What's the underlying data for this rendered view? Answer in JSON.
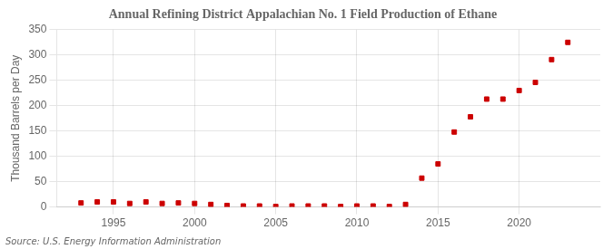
{
  "chart_data": {
    "type": "scatter",
    "title": "Annual Refining District Appalachian No. 1 Field Production of Ethane",
    "ylabel": "Thousand Barrels per Day",
    "source": "Source: U.S. Energy Information Administration",
    "x": [
      1993,
      1994,
      1995,
      1996,
      1997,
      1998,
      1999,
      2000,
      2001,
      2002,
      2003,
      2004,
      2005,
      2006,
      2007,
      2008,
      2009,
      2010,
      2011,
      2012,
      2013,
      2014,
      2015,
      2016,
      2017,
      2018,
      2019,
      2020,
      2021,
      2022,
      2023
    ],
    "values": [
      8,
      10,
      10,
      7,
      10,
      7,
      8,
      7,
      5,
      3,
      2,
      2,
      1,
      2,
      2,
      2,
      1,
      2,
      2,
      1,
      5,
      57,
      85,
      148,
      178,
      213,
      213,
      230,
      246,
      291,
      325
    ],
    "color": "#cc0000",
    "marker": "square",
    "xlim": [
      1991.5,
      2025
    ],
    "xticks": [
      1995,
      2000,
      2005,
      2010,
      2015,
      2020
    ],
    "ylim": [
      0,
      350
    ],
    "yticks": [
      0,
      50,
      100,
      150,
      200,
      250,
      300,
      350
    ],
    "grid": true
  }
}
